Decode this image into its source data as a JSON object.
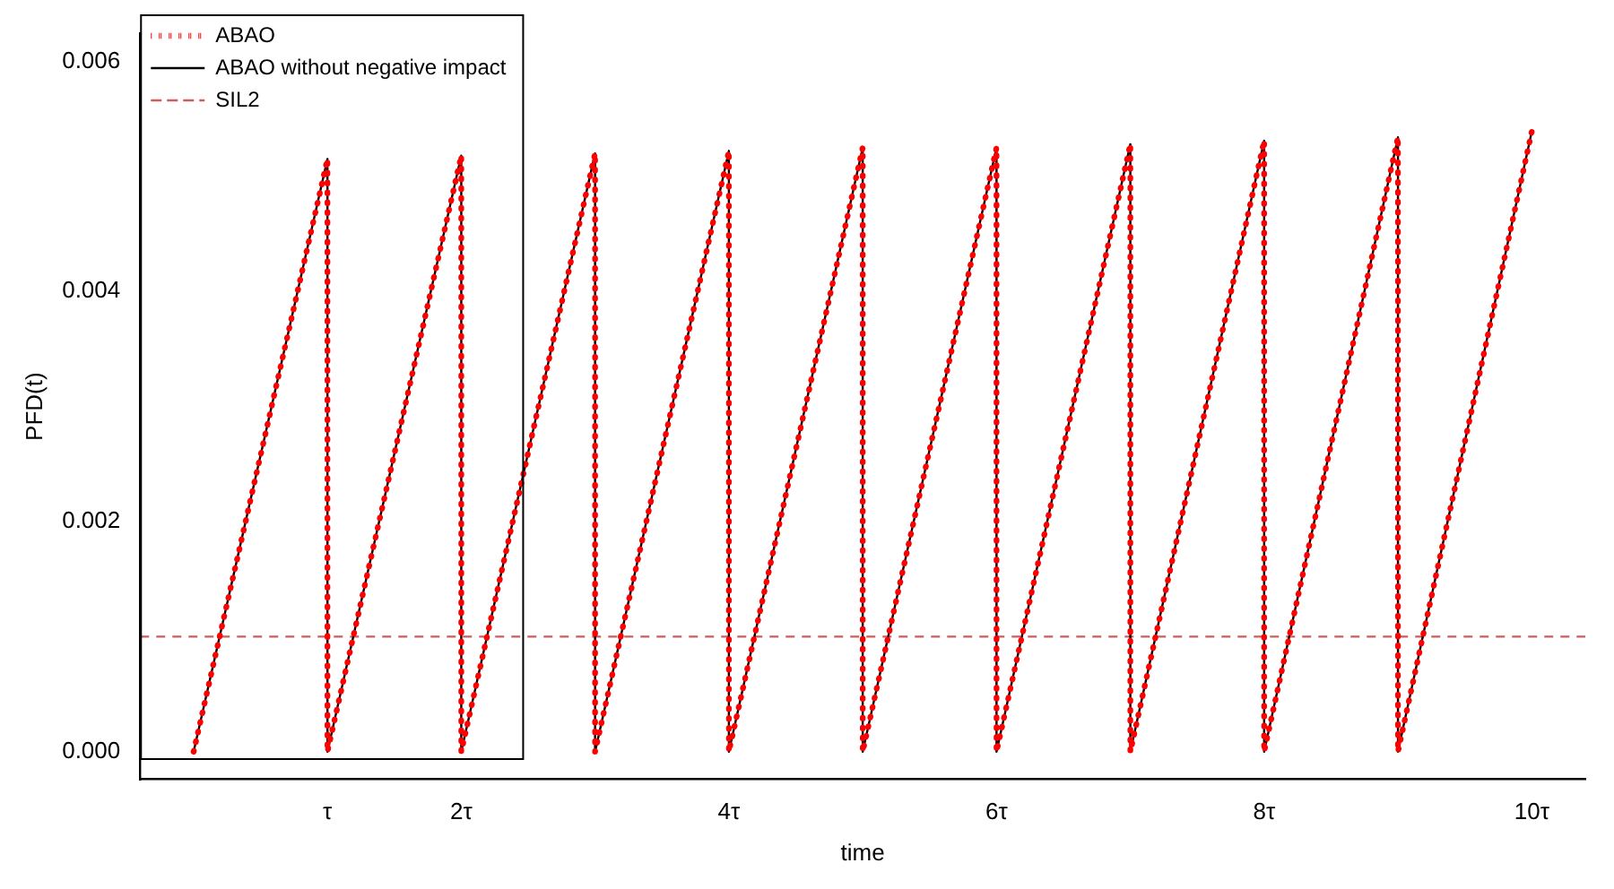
{
  "chart_data": {
    "type": "line",
    "xlabel": "time",
    "ylabel": "PFD(t)",
    "xlim": [
      -0.4,
      10.4
    ],
    "ylim": [
      -0.00024,
      0.00624
    ],
    "xticks": [
      {
        "value": 1,
        "label": "τ"
      },
      {
        "value": 2,
        "label": "2τ"
      },
      {
        "value": 4,
        "label": "4τ"
      },
      {
        "value": 6,
        "label": "6τ"
      },
      {
        "value": 8,
        "label": "8τ"
      },
      {
        "value": 10,
        "label": "10τ"
      }
    ],
    "yticks": [
      {
        "value": 0,
        "label": "0.000"
      },
      {
        "value": 0.002,
        "label": "0.002"
      },
      {
        "value": 0.004,
        "label": "0.004"
      },
      {
        "value": 0.006,
        "label": "0.006"
      }
    ],
    "grid": false,
    "legend": "top left",
    "marker": "none",
    "series": [
      {
        "name": "ABAO",
        "color": "#ff0000",
        "line_style": "dotted",
        "x": [
          0,
          1,
          1,
          2,
          2,
          3,
          3,
          4,
          4,
          5,
          5,
          6,
          6,
          7,
          7,
          8,
          8,
          9,
          9,
          10
        ],
        "values": [
          0,
          0.00515,
          0,
          0.00518,
          0,
          0.0052,
          0,
          0.00522,
          0,
          0.00525,
          0,
          0.00525,
          0,
          0.00528,
          0,
          0.00531,
          0,
          0.00534,
          0,
          0.00539
        ]
      },
      {
        "name": "ABAO without negative impact",
        "color": "#000000",
        "line_style": "solid",
        "x": [
          0,
          1,
          1,
          2,
          2,
          3,
          3,
          4,
          4,
          5,
          5,
          6,
          6,
          7,
          7,
          8,
          8,
          9,
          9,
          10
        ],
        "values": [
          0,
          0.00515,
          0,
          0.00518,
          0,
          0.0052,
          0,
          0.00522,
          0,
          0.00525,
          0,
          0.00525,
          0,
          0.00528,
          0,
          0.00531,
          0,
          0.00534,
          0,
          0.00539
        ]
      }
    ],
    "ref_lines": [
      {
        "axis": "y",
        "value": 0.001,
        "label": "SIL2",
        "color": "#cd5c5c",
        "line_style": "dashed"
      }
    ]
  }
}
